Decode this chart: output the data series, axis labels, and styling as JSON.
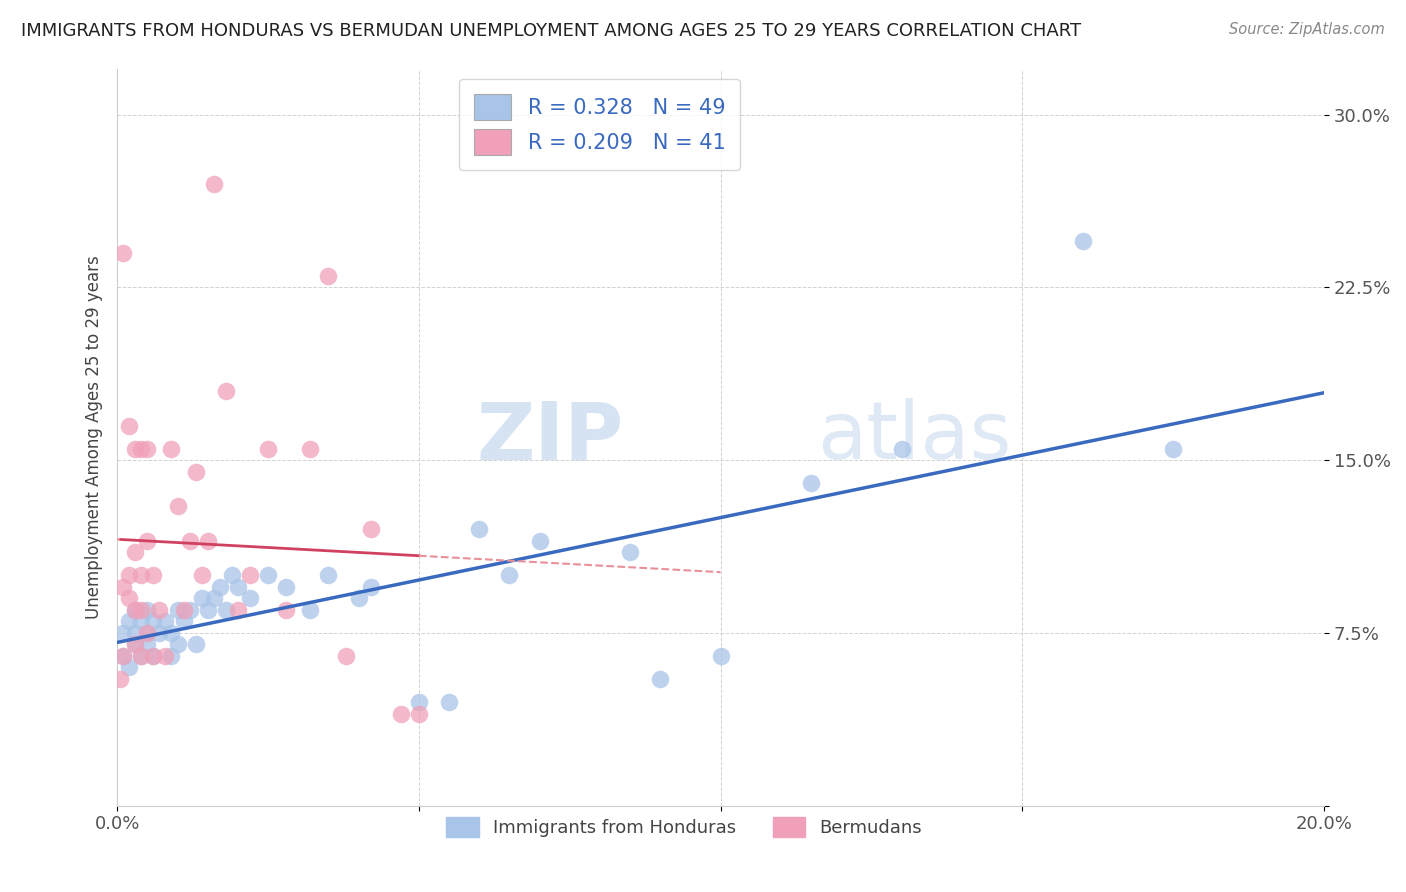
{
  "title": "IMMIGRANTS FROM HONDURAS VS BERMUDAN UNEMPLOYMENT AMONG AGES 25 TO 29 YEARS CORRELATION CHART",
  "source": "Source: ZipAtlas.com",
  "ylabel_label": "Unemployment Among Ages 25 to 29 years",
  "xlim": [
    0.0,
    0.2
  ],
  "ylim": [
    0.0,
    0.32
  ],
  "xticks": [
    0.0,
    0.05,
    0.1,
    0.15,
    0.2
  ],
  "yticks": [
    0.0,
    0.075,
    0.15,
    0.225,
    0.3
  ],
  "yticklabels": [
    "",
    "7.5%",
    "15.0%",
    "22.5%",
    "30.0%"
  ],
  "legend_r1": "0.328",
  "legend_n1": "49",
  "legend_r2": "0.209",
  "legend_n2": "41",
  "blue_color": "#a8c4e8",
  "pink_color": "#f0a0b8",
  "blue_line_color": "#3a6abf",
  "pink_line_color": "#d04060",
  "pink_dash_color": "#e8909a",
  "watermark_zip": "ZIP",
  "watermark_atlas": "atlas",
  "blue_scatter_x": [
    0.001,
    0.001,
    0.002,
    0.002,
    0.003,
    0.003,
    0.003,
    0.004,
    0.004,
    0.005,
    0.005,
    0.005,
    0.006,
    0.006,
    0.007,
    0.008,
    0.009,
    0.009,
    0.01,
    0.01,
    0.011,
    0.012,
    0.013,
    0.014,
    0.015,
    0.016,
    0.017,
    0.018,
    0.019,
    0.02,
    0.022,
    0.025,
    0.028,
    0.032,
    0.035,
    0.04,
    0.042,
    0.05,
    0.055,
    0.06,
    0.065,
    0.07,
    0.085,
    0.09,
    0.1,
    0.115,
    0.13,
    0.16,
    0.175
  ],
  "blue_scatter_y": [
    0.065,
    0.075,
    0.06,
    0.08,
    0.07,
    0.075,
    0.085,
    0.065,
    0.08,
    0.07,
    0.075,
    0.085,
    0.065,
    0.08,
    0.075,
    0.08,
    0.065,
    0.075,
    0.07,
    0.085,
    0.08,
    0.085,
    0.07,
    0.09,
    0.085,
    0.09,
    0.095,
    0.085,
    0.1,
    0.095,
    0.09,
    0.1,
    0.095,
    0.085,
    0.1,
    0.09,
    0.095,
    0.045,
    0.045,
    0.12,
    0.1,
    0.115,
    0.11,
    0.055,
    0.065,
    0.14,
    0.155,
    0.245,
    0.155
  ],
  "pink_scatter_x": [
    0.0005,
    0.001,
    0.001,
    0.002,
    0.002,
    0.003,
    0.003,
    0.003,
    0.004,
    0.004,
    0.004,
    0.005,
    0.005,
    0.006,
    0.006,
    0.007,
    0.008,
    0.009,
    0.01,
    0.011,
    0.012,
    0.013,
    0.014,
    0.015,
    0.016,
    0.018,
    0.02,
    0.022,
    0.025,
    0.028,
    0.032,
    0.035,
    0.038,
    0.042,
    0.047,
    0.05,
    0.001,
    0.002,
    0.003,
    0.004,
    0.005
  ],
  "pink_scatter_y": [
    0.055,
    0.065,
    0.095,
    0.09,
    0.1,
    0.07,
    0.085,
    0.11,
    0.065,
    0.085,
    0.1,
    0.075,
    0.115,
    0.065,
    0.1,
    0.085,
    0.065,
    0.155,
    0.13,
    0.085,
    0.115,
    0.145,
    0.1,
    0.115,
    0.27,
    0.18,
    0.085,
    0.1,
    0.155,
    0.085,
    0.155,
    0.23,
    0.065,
    0.12,
    0.04,
    0.04,
    0.24,
    0.165,
    0.155,
    0.155,
    0.155
  ]
}
